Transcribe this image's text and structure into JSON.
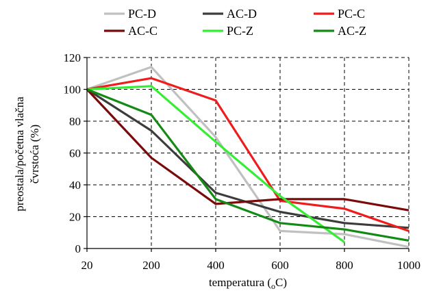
{
  "chart_data": {
    "type": "line",
    "x": [
      "20",
      "200",
      "400",
      "600",
      "800",
      "1000"
    ],
    "ylim": [
      0,
      120
    ],
    "yticks": [
      "0",
      "20",
      "40",
      "60",
      "80",
      "100",
      "120"
    ],
    "xlabel_main": "temperatura (",
    "xlabel_sub": "o",
    "xlabel_end": "C)",
    "ylabel_line1": "preostala/početna vlačna",
    "ylabel_line2": "čvrstoća (%)",
    "grid": true,
    "legend_position": "top",
    "series": [
      {
        "name": "PC-D",
        "color": "#c0c0c0",
        "values": [
          100,
          114,
          70,
          11,
          9,
          1
        ]
      },
      {
        "name": "AC-D",
        "color": "#3c3c3c",
        "values": [
          100,
          74,
          35,
          23,
          16,
          13
        ]
      },
      {
        "name": "PC-C",
        "color": "#ee1c1c",
        "values": [
          100,
          107,
          93,
          30,
          25,
          11
        ]
      },
      {
        "name": "AC-C",
        "color": "#7a0a0a",
        "values": [
          100,
          57,
          28,
          31,
          31,
          24
        ]
      },
      {
        "name": "PC-Z",
        "color": "#33ee33",
        "values": [
          100,
          102,
          67,
          33,
          4,
          null
        ]
      },
      {
        "name": "AC-Z",
        "color": "#138a13",
        "values": [
          100,
          84,
          31,
          16,
          12,
          5
        ]
      }
    ]
  }
}
